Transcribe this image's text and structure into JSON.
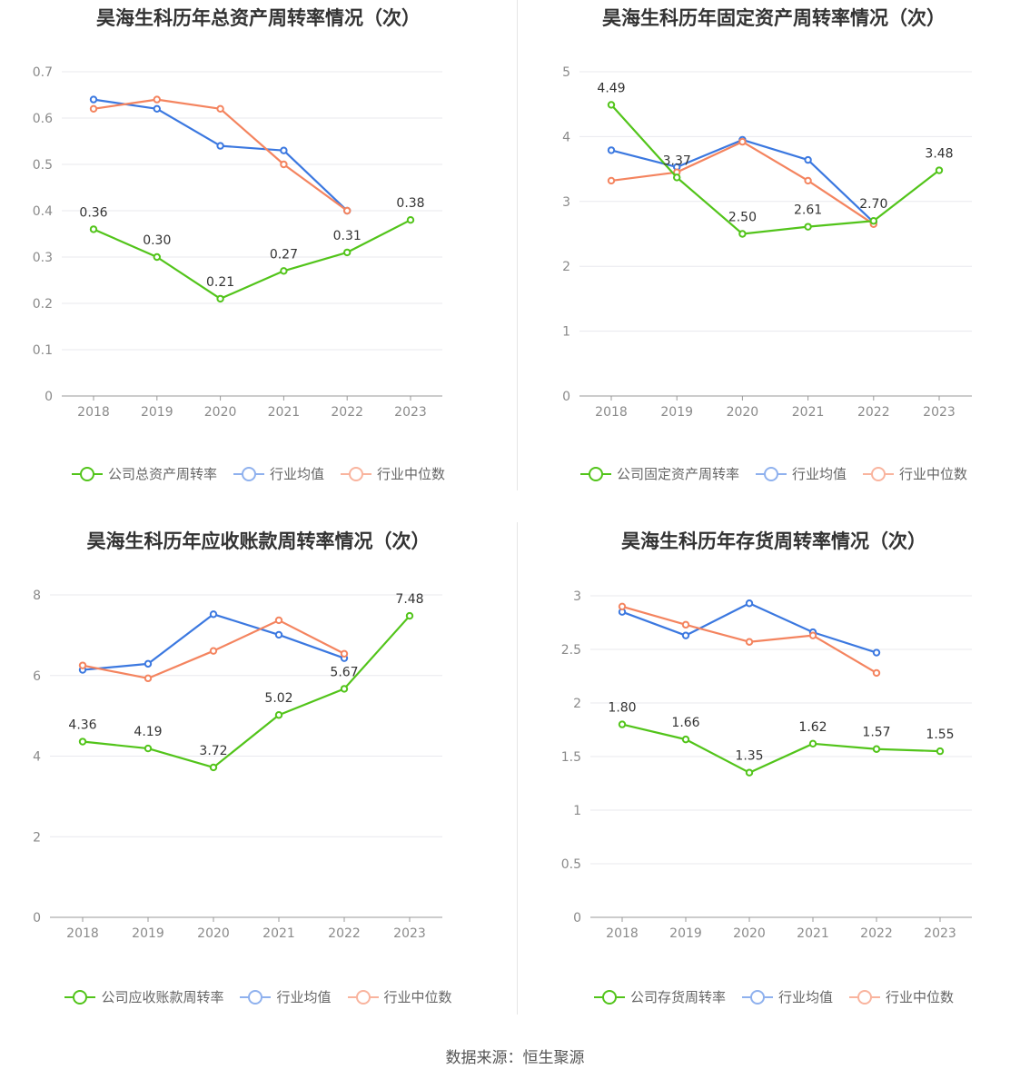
{
  "source": "数据来源：恒生聚源",
  "legend_labels": {
    "avg": "行业均值",
    "median": "行业中位数"
  },
  "colors": {
    "company": "#52c41a",
    "avg": "#3b78e0",
    "median": "#f4845f",
    "avg_legend": "#8fb1ee",
    "median_legend": "#f9b49e",
    "grid": "#e8e8ee",
    "axis": "#999999"
  },
  "chart_data": [
    {
      "type": "line",
      "title": "昊海生科历年总资产周转率情况（次）",
      "categories": [
        "2018",
        "2019",
        "2020",
        "2021",
        "2022",
        "2023"
      ],
      "ylim": [
        0,
        0.7
      ],
      "yticks": [
        "0",
        "0.1",
        "0.2",
        "0.3",
        "0.4",
        "0.5",
        "0.6",
        "0.7"
      ],
      "series": [
        {
          "name": "公司总资产周转率",
          "role": "company",
          "values": [
            0.36,
            0.3,
            0.21,
            0.27,
            0.31,
            0.38
          ],
          "labels": [
            "0.36",
            "0.30",
            "0.21",
            "0.27",
            "0.31",
            "0.38"
          ]
        },
        {
          "name": "行业均值",
          "role": "avg",
          "values": [
            0.64,
            0.62,
            0.54,
            0.53,
            0.4,
            null
          ]
        },
        {
          "name": "行业中位数",
          "role": "median",
          "values": [
            0.62,
            0.64,
            0.62,
            0.5,
            0.4,
            null
          ]
        }
      ]
    },
    {
      "type": "line",
      "title": "昊海生科历年固定资产周转率情况（次）",
      "categories": [
        "2018",
        "2019",
        "2020",
        "2021",
        "2022",
        "2023"
      ],
      "ylim": [
        0,
        5
      ],
      "yticks": [
        "0",
        "1",
        "2",
        "3",
        "4",
        "5"
      ],
      "series": [
        {
          "name": "公司固定资产周转率",
          "role": "company",
          "values": [
            4.49,
            3.37,
            2.5,
            2.61,
            2.7,
            3.48
          ],
          "labels": [
            "4.49",
            "3.37",
            "2.50",
            "2.61",
            "2.70",
            "3.48"
          ]
        },
        {
          "name": "行业均值",
          "role": "avg",
          "values": [
            3.79,
            3.53,
            3.95,
            3.64,
            2.68,
            null
          ]
        },
        {
          "name": "行业中位数",
          "role": "median",
          "values": [
            3.32,
            3.45,
            3.92,
            3.32,
            2.65,
            null
          ]
        }
      ]
    },
    {
      "type": "line",
      "title": "昊海生科历年应收账款周转率情况（次）",
      "categories": [
        "2018",
        "2019",
        "2020",
        "2021",
        "2022",
        "2023"
      ],
      "ylim": [
        0,
        8
      ],
      "yticks": [
        "0",
        "2",
        "4",
        "6",
        "8"
      ],
      "series": [
        {
          "name": "公司应收账款周转率",
          "role": "company",
          "values": [
            4.36,
            4.19,
            3.72,
            5.02,
            5.67,
            7.48
          ],
          "labels": [
            "4.36",
            "4.19",
            "3.72",
            "5.02",
            "5.67",
            "7.48"
          ]
        },
        {
          "name": "行业均值",
          "role": "avg",
          "values": [
            6.14,
            6.29,
            7.52,
            7.01,
            6.43,
            null
          ]
        },
        {
          "name": "行业中位数",
          "role": "median",
          "values": [
            6.25,
            5.93,
            6.61,
            7.37,
            6.54,
            null
          ]
        }
      ]
    },
    {
      "type": "line",
      "title": "昊海生科历年存货周转率情况（次）",
      "categories": [
        "2018",
        "2019",
        "2020",
        "2021",
        "2022",
        "2023"
      ],
      "ylim": [
        0,
        3
      ],
      "yticks": [
        "0",
        "0.5",
        "1",
        "1.5",
        "2",
        "2.5",
        "3"
      ],
      "series": [
        {
          "name": "公司存货周转率",
          "role": "company",
          "values": [
            1.8,
            1.66,
            1.35,
            1.62,
            1.57,
            1.55
          ],
          "labels": [
            "1.80",
            "1.66",
            "1.35",
            "1.62",
            "1.57",
            "1.55"
          ]
        },
        {
          "name": "行业均值",
          "role": "avg",
          "values": [
            2.85,
            2.63,
            2.93,
            2.66,
            2.47,
            null
          ]
        },
        {
          "name": "行业中位数",
          "role": "median",
          "values": [
            2.9,
            2.73,
            2.57,
            2.63,
            2.28,
            null
          ]
        }
      ]
    }
  ]
}
